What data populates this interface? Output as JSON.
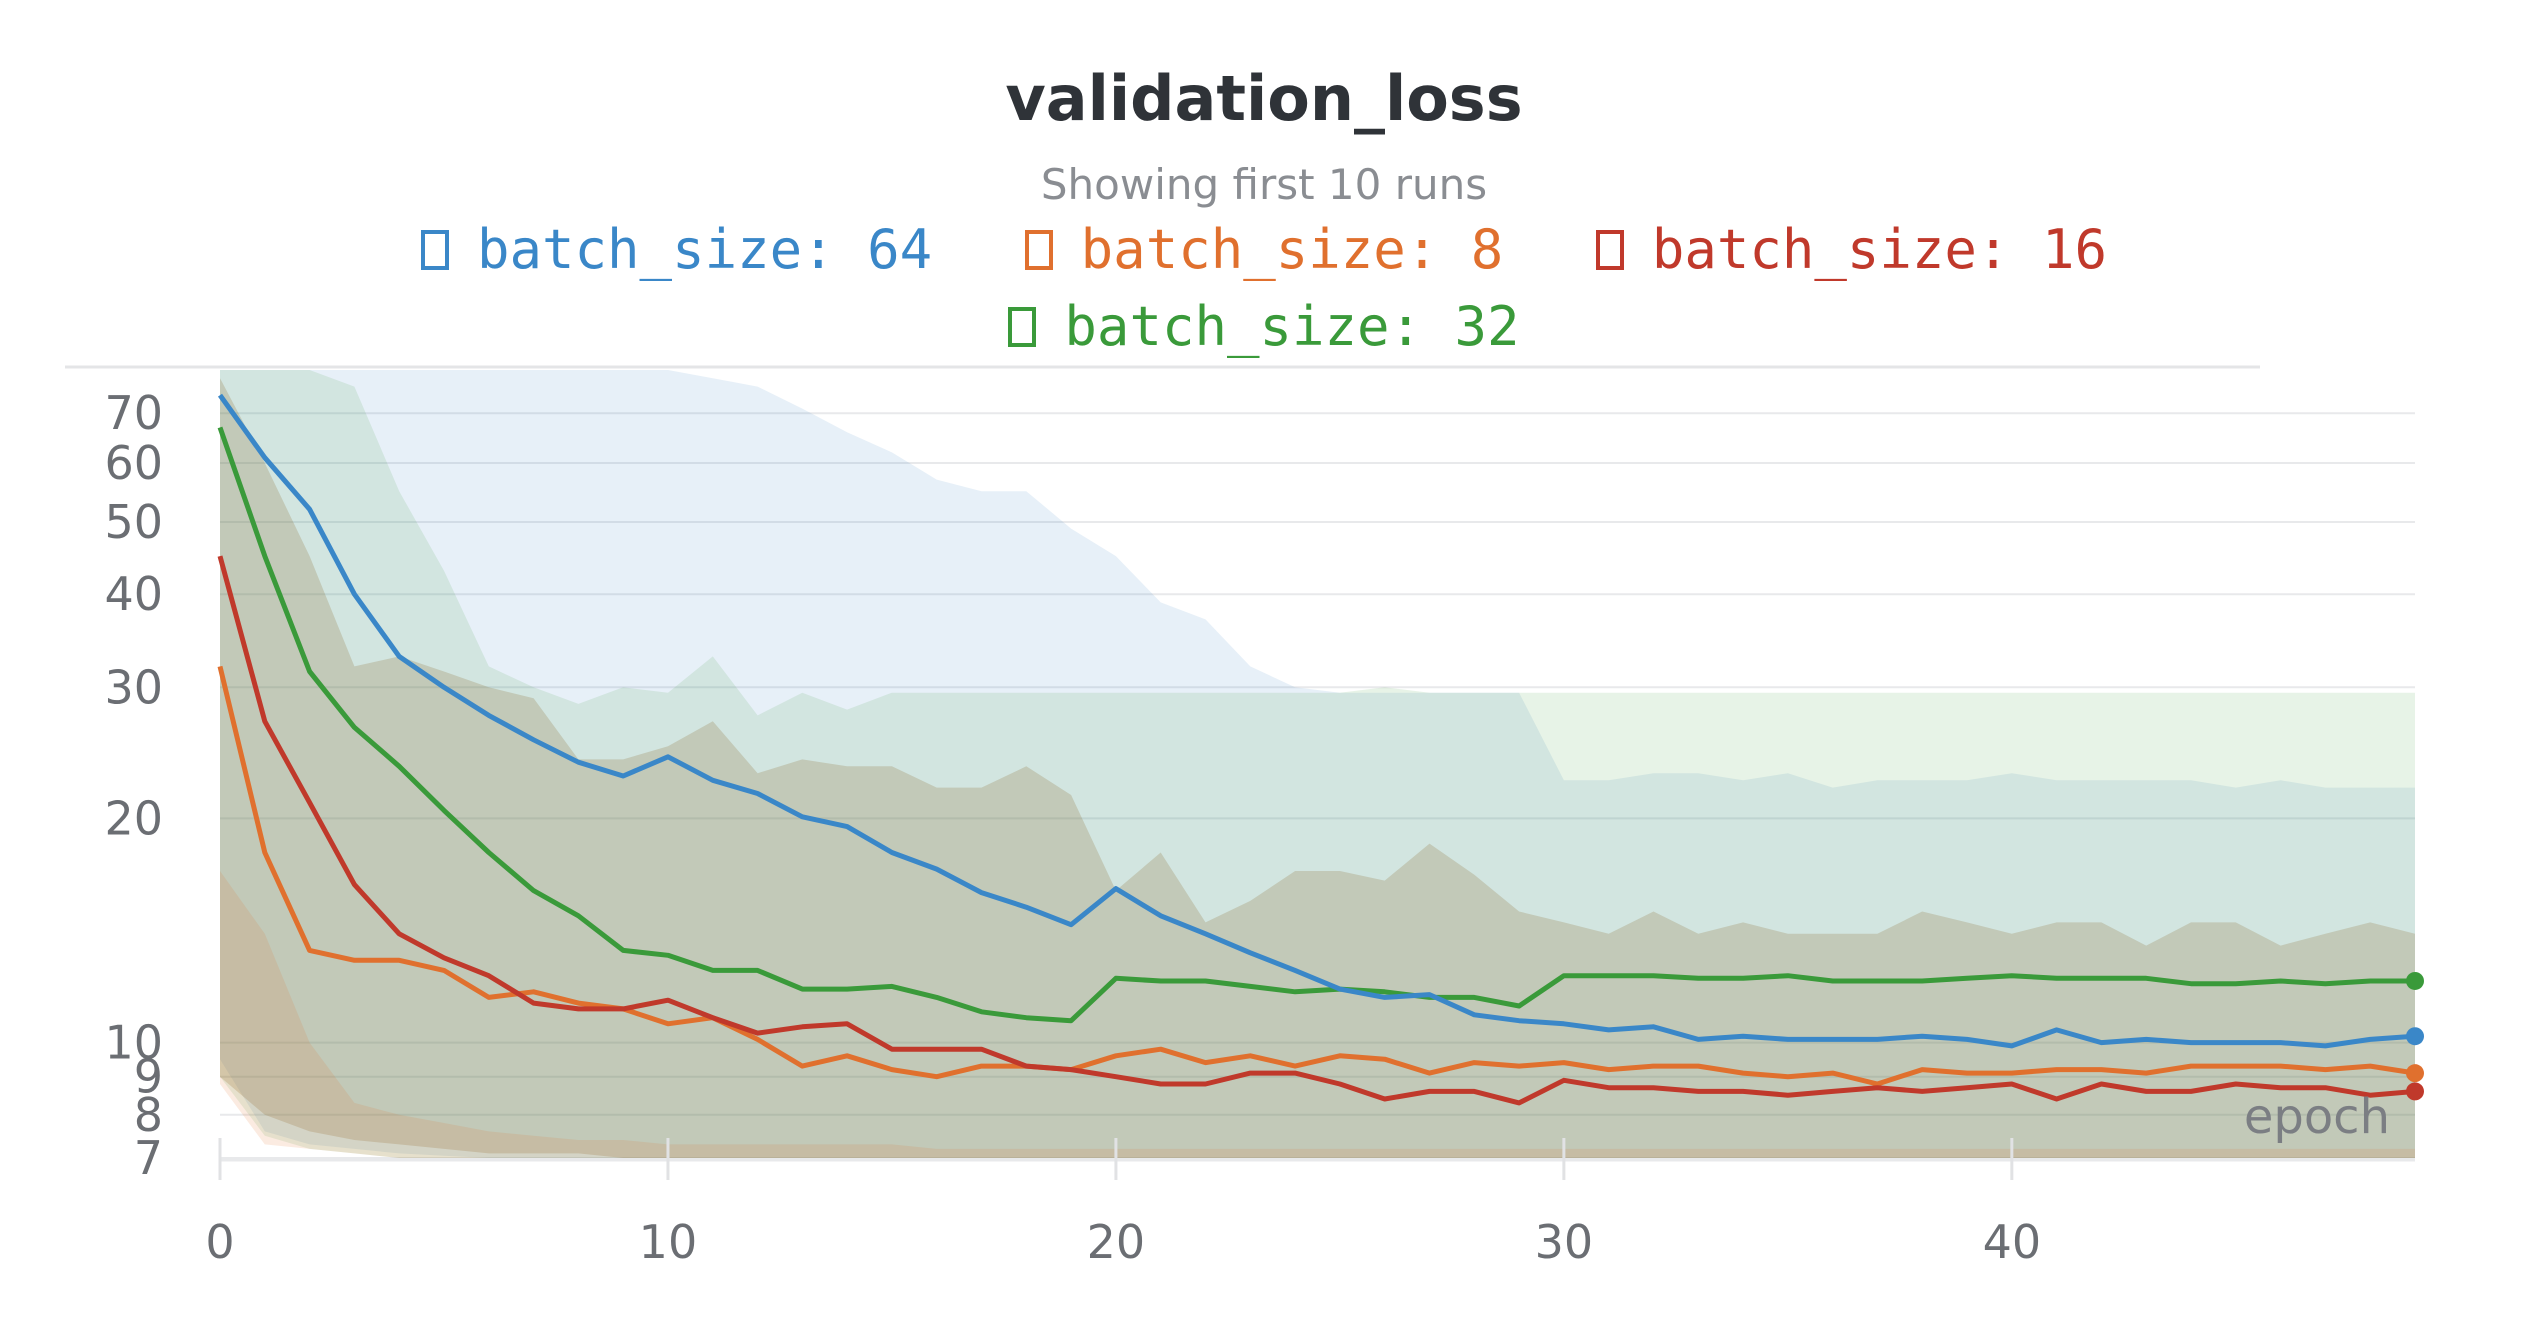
{
  "chart_data": {
    "type": "line",
    "title": "validation_loss",
    "subtitle": "Showing first 10 runs",
    "xlabel": "epoch",
    "ylabel": "",
    "y_scale": "log",
    "xlim": [
      0,
      49
    ],
    "ylim": [
      7,
      80
    ],
    "x_ticks": [
      0,
      10,
      20,
      30,
      40
    ],
    "y_ticks": [
      7,
      8,
      9,
      10,
      20,
      30,
      40,
      50,
      60,
      70
    ],
    "grid": true,
    "legend_position": "top",
    "shaded_ranges": true,
    "x": [
      0,
      1,
      2,
      3,
      4,
      5,
      6,
      7,
      8,
      9,
      10,
      11,
      12,
      13,
      14,
      15,
      16,
      17,
      18,
      19,
      20,
      21,
      22,
      23,
      24,
      25,
      26,
      27,
      28,
      29,
      30,
      31,
      32,
      33,
      34,
      35,
      36,
      37,
      38,
      39,
      40,
      41,
      42,
      43,
      44,
      45,
      46,
      47,
      48,
      49
    ],
    "series": [
      {
        "name": "batch_size: 64",
        "color": "#3a87c8",
        "values": [
          74,
          61,
          52,
          40,
          33,
          30,
          27.5,
          25.5,
          23.8,
          22.8,
          24.2,
          22.5,
          21.6,
          20.1,
          19.5,
          18,
          17.1,
          15.9,
          15.2,
          14.4,
          16.1,
          14.8,
          14,
          13.2,
          12.5,
          11.8,
          11.5,
          11.6,
          10.9,
          10.7,
          10.6,
          10.4,
          10.5,
          10.1,
          10.2,
          10.1,
          10.1,
          10.1,
          10.2,
          10.1,
          9.9,
          10.4,
          10,
          10.1,
          10,
          10,
          10,
          9.9,
          10.1,
          10.2
        ],
        "band_low": [
          9.5,
          7.6,
          7.3,
          7.2,
          7.1,
          7.05,
          7,
          7,
          7,
          7,
          7,
          7,
          7,
          7,
          7,
          7,
          7,
          7,
          7,
          7,
          7,
          7,
          7,
          7,
          7,
          7,
          7,
          7,
          7,
          7,
          7,
          7,
          7,
          7,
          7,
          7,
          7,
          7,
          7,
          7,
          7,
          7,
          7,
          7,
          7,
          7,
          7,
          7,
          7,
          7
        ],
        "band_high": [
          80,
          80,
          80,
          80,
          80,
          80,
          80,
          80,
          80,
          80,
          80,
          78,
          76,
          71,
          66,
          62,
          57,
          55,
          55,
          49,
          45,
          39,
          37,
          32,
          30,
          29.5,
          29.5,
          29.5,
          29.5,
          29.5,
          22.5,
          22.5,
          23,
          23,
          22.5,
          23,
          22,
          22.5,
          22.5,
          22.5,
          23,
          22.5,
          22.5,
          22.5,
          22.5,
          22,
          22.5,
          22,
          22,
          22
        ]
      },
      {
        "name": "batch_size: 8",
        "color": "#e0702e",
        "values": [
          32,
          18,
          13.3,
          12.9,
          12.9,
          12.5,
          11.5,
          11.7,
          11.3,
          11.1,
          10.6,
          10.8,
          10.1,
          9.3,
          9.6,
          9.2,
          9,
          9.3,
          9.3,
          9.2,
          9.6,
          9.8,
          9.4,
          9.6,
          9.3,
          9.6,
          9.5,
          9.1,
          9.4,
          9.3,
          9.4,
          9.2,
          9.3,
          9.3,
          9.1,
          9,
          9.1,
          8.8,
          9.2,
          9.1,
          9.1,
          9.2,
          9.2,
          9.1,
          9.3,
          9.3,
          9.3,
          9.2,
          9.3,
          9.1
        ],
        "band_low": [
          8.8,
          7.3,
          7.2,
          7.1,
          7,
          7,
          7,
          7,
          7,
          7,
          7,
          7,
          7,
          7,
          7,
          7,
          7,
          7,
          7,
          7,
          7,
          7,
          7,
          7,
          7,
          7,
          7,
          7,
          7,
          7,
          7,
          7,
          7,
          7,
          7,
          7,
          7,
          7,
          7,
          7,
          7,
          7,
          7,
          7,
          7,
          7,
          7,
          7,
          7,
          7
        ],
        "band_high": [
          17,
          14,
          10,
          8.3,
          8,
          7.8,
          7.6,
          7.5,
          7.4,
          7.4,
          7.3,
          7.3,
          7.3,
          7.3,
          7.3,
          7.3,
          7.2,
          7.2,
          7.2,
          7.2,
          7.2,
          7.2,
          7.2,
          7.2,
          7.2,
          7.2,
          7.2,
          7.2,
          7.2,
          7.2,
          7.2,
          7.2,
          7.2,
          7.2,
          7.2,
          7.2,
          7.2,
          7.2,
          7.2,
          7.2,
          7.2,
          7.2,
          7.2,
          7.2,
          7.2,
          7.2,
          7.2,
          7.2,
          7.2,
          7.2
        ]
      },
      {
        "name": "batch_size: 16",
        "color": "#c0392b",
        "values": [
          45,
          27,
          21,
          16.3,
          14,
          13,
          12.3,
          11.3,
          11.1,
          11.1,
          11.4,
          10.8,
          10.3,
          10.5,
          10.6,
          9.8,
          9.8,
          9.8,
          9.3,
          9.2,
          9,
          8.8,
          8.8,
          9.1,
          9.1,
          8.8,
          8.4,
          8.6,
          8.6,
          8.3,
          8.9,
          8.7,
          8.7,
          8.6,
          8.6,
          8.5,
          8.6,
          8.7,
          8.6,
          8.7,
          8.8,
          8.4,
          8.8,
          8.6,
          8.6,
          8.8,
          8.7,
          8.7,
          8.5,
          8.6
        ],
        "band_low": [
          9,
          8,
          7.6,
          7.4,
          7.3,
          7.2,
          7.1,
          7.1,
          7.1,
          7,
          7,
          7,
          7,
          7,
          7,
          7,
          7,
          7,
          7,
          7,
          7,
          7,
          7,
          7,
          7,
          7,
          7,
          7,
          7,
          7,
          7,
          7,
          7,
          7,
          7,
          7,
          7,
          7,
          7,
          7,
          7,
          7,
          7,
          7,
          7,
          7,
          7,
          7,
          7,
          7
        ],
        "band_high": [
          78,
          60,
          45,
          32,
          33,
          31.5,
          30,
          29,
          24,
          24,
          25,
          27,
          23,
          24,
          23.5,
          23.5,
          22,
          22,
          23.5,
          21.5,
          16,
          18,
          14.5,
          15.5,
          17,
          17,
          16.5,
          18.5,
          16.8,
          15,
          14.5,
          14,
          15,
          14,
          14.5,
          14,
          14,
          14,
          15,
          14.5,
          14,
          14.5,
          14.5,
          13.5,
          14.5,
          14.5,
          13.5,
          14,
          14.5,
          14
        ]
      },
      {
        "name": "batch_size: 32",
        "color": "#3a9a3a",
        "values": [
          67,
          45,
          31.5,
          26.5,
          23.5,
          20.5,
          18,
          16,
          14.8,
          13.3,
          13.1,
          12.5,
          12.5,
          11.8,
          11.8,
          11.9,
          11.5,
          11,
          10.8,
          10.7,
          12.2,
          12.1,
          12.1,
          11.9,
          11.7,
          11.8,
          11.7,
          11.5,
          11.5,
          11.2,
          12.3,
          12.3,
          12.3,
          12.2,
          12.2,
          12.3,
          12.1,
          12.1,
          12.1,
          12.2,
          12.3,
          12.2,
          12.2,
          12.2,
          12,
          12,
          12.1,
          12,
          12.1,
          12.1
        ],
        "band_low": [
          9,
          7.5,
          7.2,
          7.1,
          7,
          7,
          7,
          7,
          7,
          7,
          7,
          7,
          7,
          7,
          7,
          7,
          7,
          7,
          7,
          7,
          7,
          7,
          7,
          7,
          7,
          7,
          7,
          7,
          7,
          7,
          7,
          7,
          7,
          7,
          7,
          7,
          7,
          7,
          7,
          7,
          7,
          7,
          7,
          7,
          7,
          7,
          7,
          7,
          7,
          7
        ],
        "band_high": [
          80,
          80,
          80,
          76,
          55,
          43,
          32,
          30,
          28.5,
          30,
          29.5,
          33,
          27.5,
          29.5,
          28,
          29.5,
          29.5,
          29.5,
          29.5,
          29.5,
          29.5,
          29.5,
          29.5,
          29.5,
          29.5,
          29.5,
          30,
          29.5,
          29.5,
          29.5,
          29.5,
          29.5,
          29.5,
          29.5,
          29.5,
          29.5,
          29.5,
          29.5,
          29.5,
          29.5,
          29.5,
          29.5,
          29.5,
          29.5,
          29.5,
          29.5,
          29.5,
          29.5,
          29.5,
          29.5
        ]
      }
    ]
  }
}
